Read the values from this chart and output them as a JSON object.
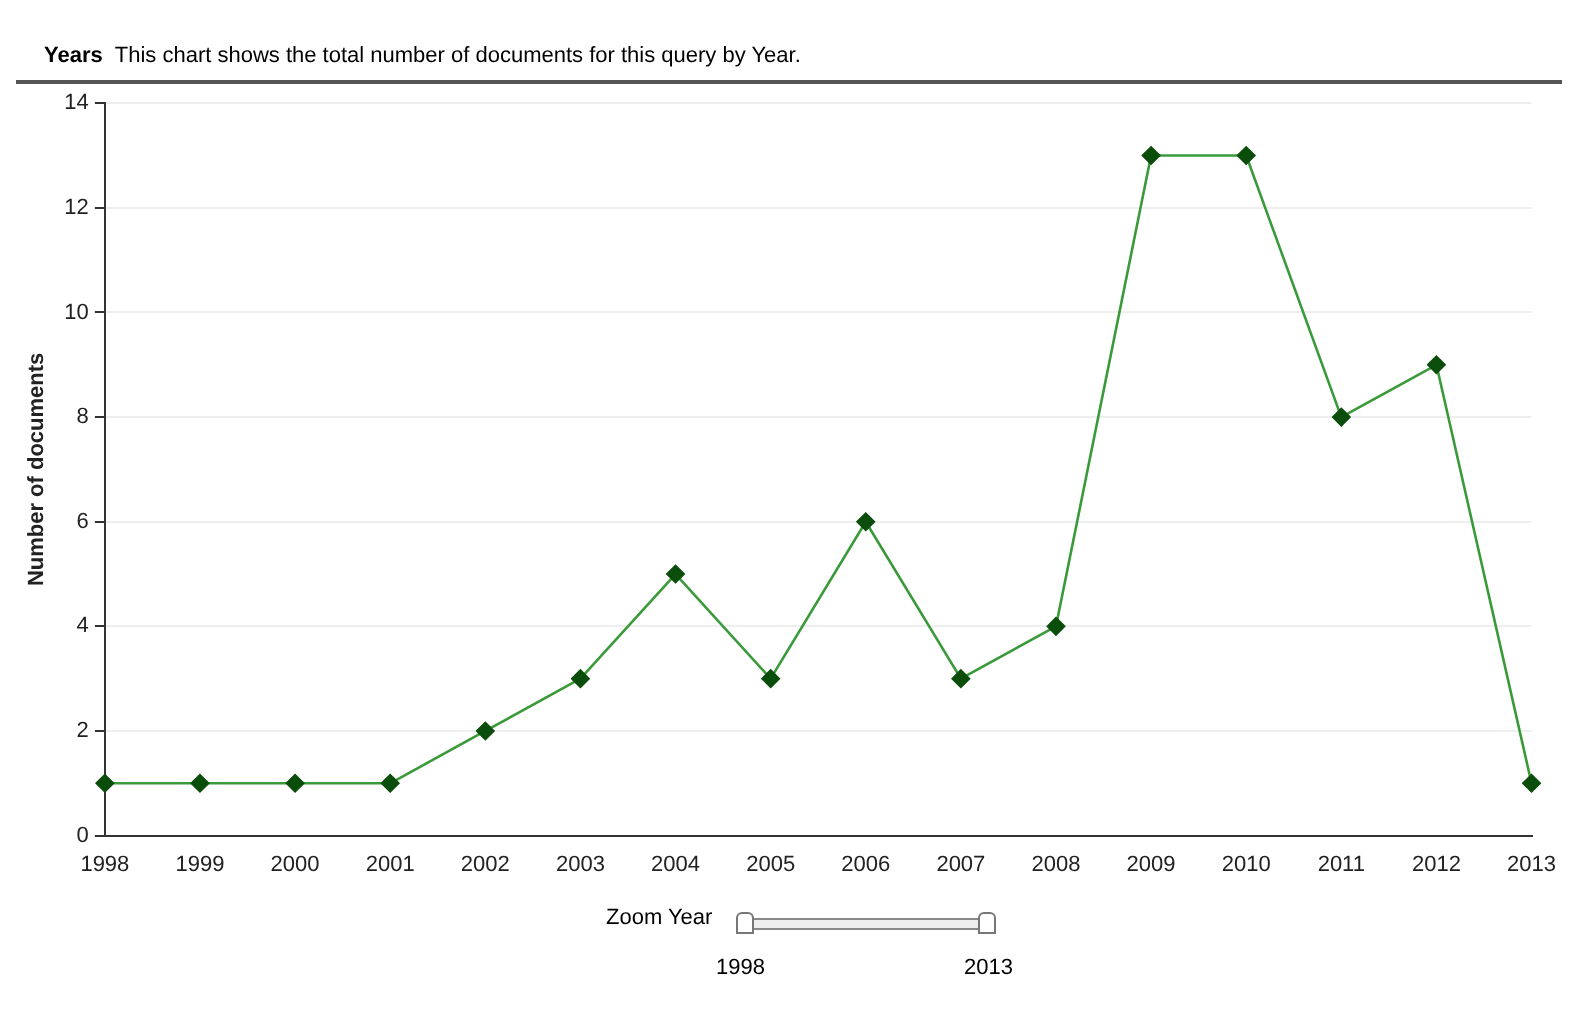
{
  "chart_data": {
    "type": "line",
    "title": "Years",
    "subtitle": "This chart shows the total number of documents for this query by Year.",
    "ylabel": "Number of documents",
    "categories": [
      "1998",
      "1999",
      "2000",
      "2001",
      "2002",
      "2003",
      "2004",
      "2005",
      "2006",
      "2007",
      "2008",
      "2009",
      "2010",
      "2011",
      "2012",
      "2013"
    ],
    "series": [
      {
        "color": "#3a9a3a",
        "values": [
          1,
          1,
          1,
          1,
          2,
          3,
          5,
          3,
          6,
          3,
          4,
          13,
          13,
          8,
          9,
          1
        ]
      }
    ],
    "ylim": [
      0,
      14
    ],
    "yticks": [
      0,
      2,
      4,
      6,
      8,
      10,
      12,
      14
    ],
    "grid": "y",
    "marker": "diamond",
    "line_style": "solid",
    "legend": false,
    "annotations": [
      "Zoom Year",
      "1998",
      "2013"
    ]
  }
}
